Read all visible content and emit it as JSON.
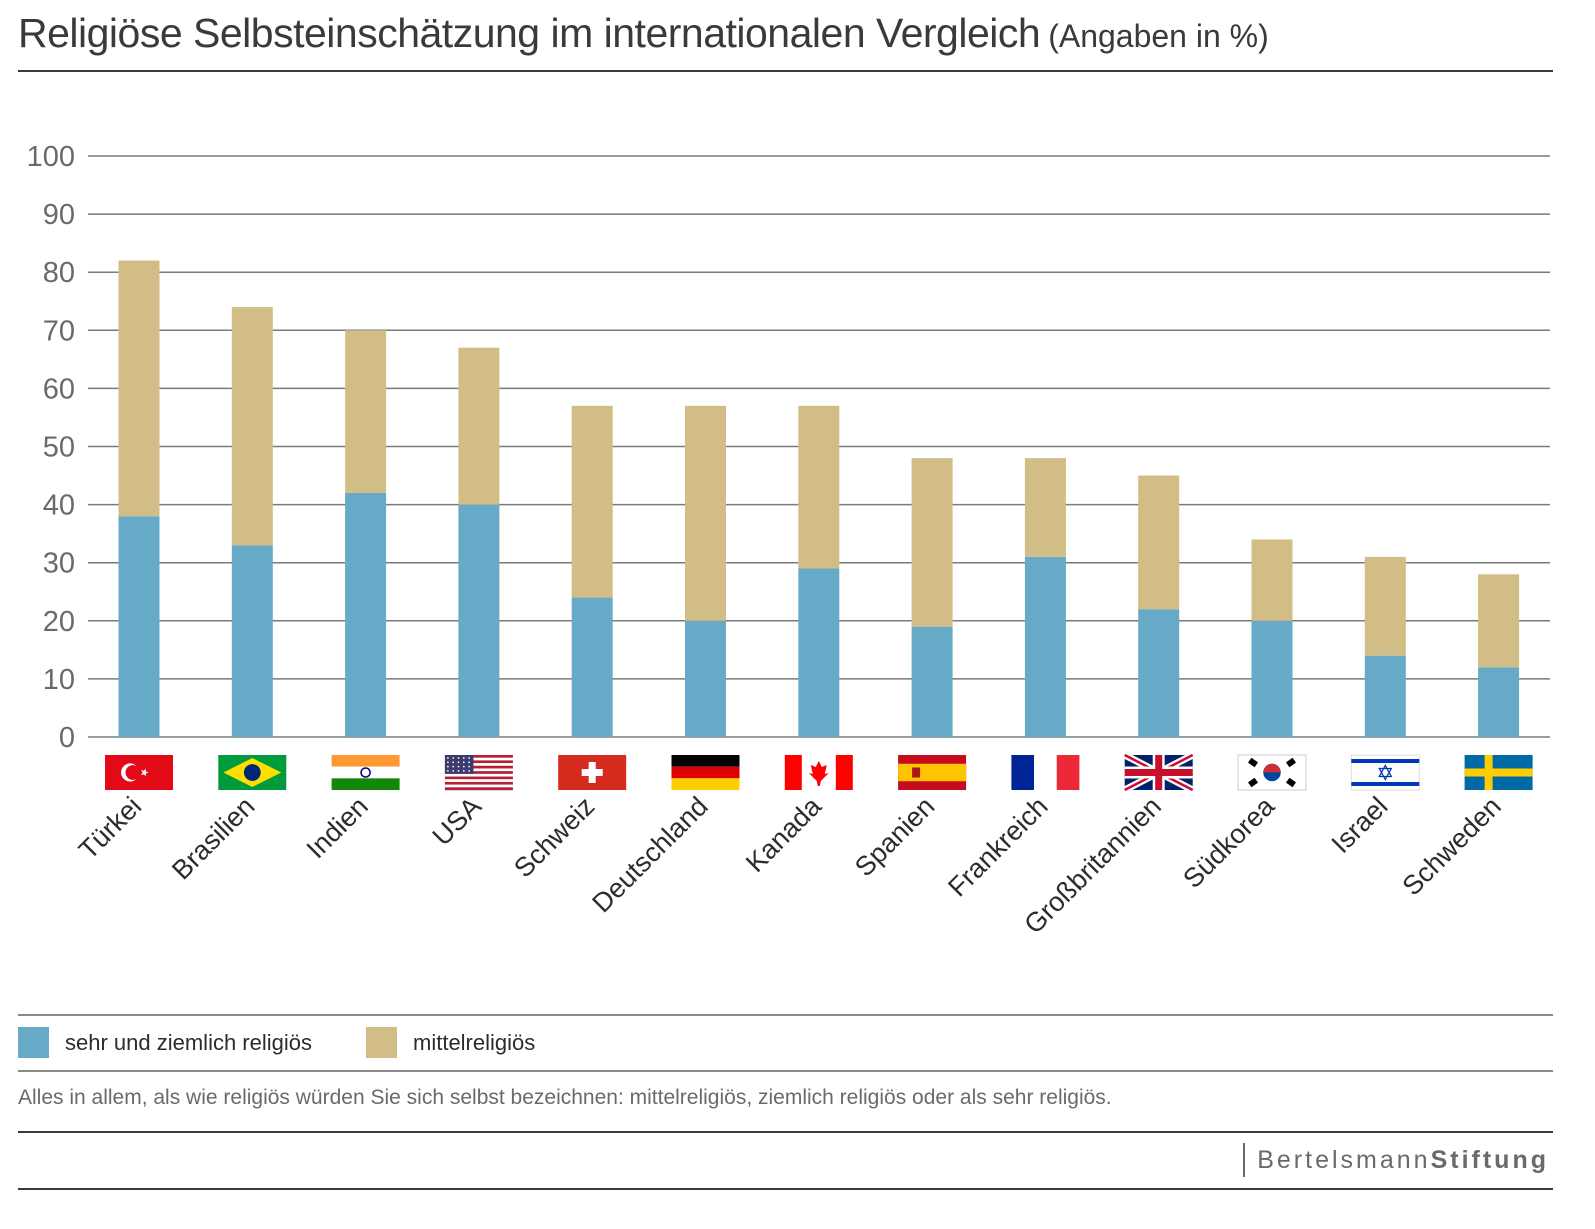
{
  "title": "Religiöse Selbsteinschätzung im internationalen Vergleich",
  "subtitle": "(Angaben in %)",
  "legend": {
    "series_a": "sehr und ziemlich religiös",
    "series_b": "mittelreligiös"
  },
  "note": "Alles in allem, als wie religiös würden Sie sich selbst bezeichnen: mittelreligiös, ziemlich religiös oder als sehr religiös.",
  "brand": {
    "part1": "Bertelsmann",
    "part2": "Stiftung"
  },
  "colors": {
    "sehr_ziemlich": "#67aac8",
    "mittel": "#d3bd86",
    "grid": "#7a7a7a",
    "text": "#3a3a3a"
  },
  "flags": [
    "turkey-flag",
    "brazil-flag",
    "india-flag",
    "usa-flag",
    "switzerland-flag",
    "germany-flag",
    "canada-flag",
    "spain-flag",
    "france-flag",
    "uk-flag",
    "south-korea-flag",
    "israel-flag",
    "sweden-flag"
  ],
  "chart_data": {
    "type": "bar",
    "stacked": true,
    "categories": [
      "Türkei",
      "Brasilien",
      "Indien",
      "USA",
      "Schweiz",
      "Deutschland",
      "Kanada",
      "Spanien",
      "Frankreich",
      "Großbritannien",
      "Südkorea",
      "Israel",
      "Schweden"
    ],
    "series": [
      {
        "name": "sehr und ziemlich religiös",
        "values": [
          38,
          33,
          42,
          40,
          24,
          20,
          29,
          19,
          31,
          22,
          20,
          14,
          12
        ]
      },
      {
        "name": "mittelreligiös",
        "values": [
          44,
          41,
          28,
          27,
          33,
          37,
          28,
          29,
          17,
          23,
          14,
          17,
          16
        ]
      }
    ],
    "yticks": [
      0,
      10,
      20,
      30,
      40,
      50,
      60,
      70,
      80,
      90,
      100
    ],
    "ylim": [
      0,
      100
    ],
    "grid": true,
    "legend_position": "bottom"
  }
}
